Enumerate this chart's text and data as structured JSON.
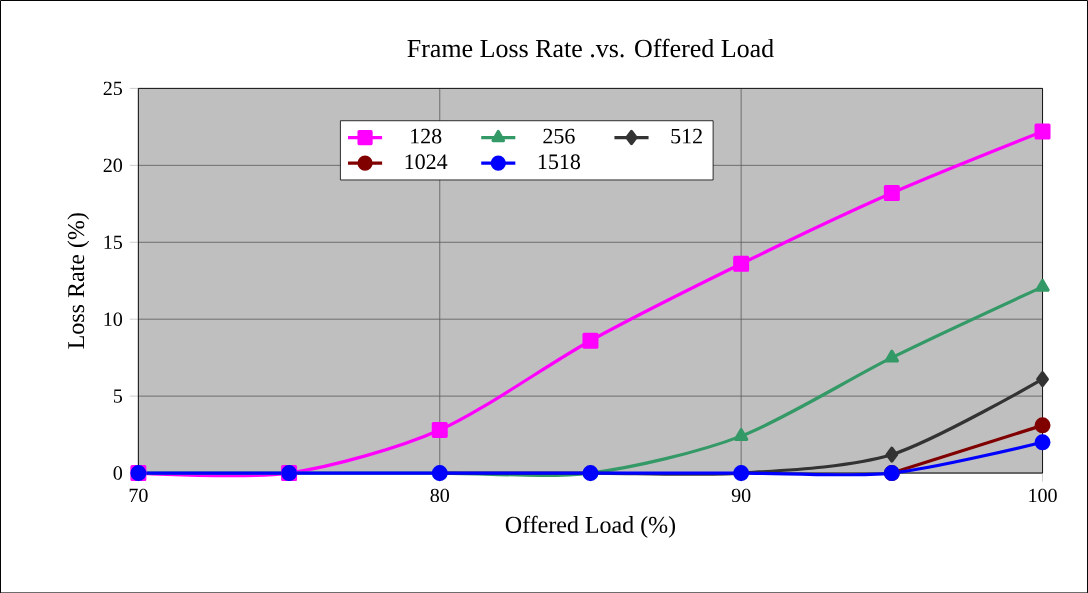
{
  "chart_data": {
    "type": "line",
    "title": "Frame Loss Rate .vs. Offered Load",
    "xlabel": "Offered Load (%)",
    "ylabel": "Loss Rate (%)",
    "x": [
      70,
      75,
      80,
      85,
      90,
      95,
      100
    ],
    "series": [
      {
        "name": "128",
        "color": "#ff00ff",
        "marker": "square",
        "values": [
          0,
          0,
          2.8,
          8.6,
          13.6,
          18.2,
          22.2
        ]
      },
      {
        "name": "256",
        "color": "#339966",
        "marker": "triangle",
        "values": [
          0,
          0,
          0,
          0,
          2.4,
          7.5,
          12.1
        ]
      },
      {
        "name": "512",
        "color": "#333333",
        "marker": "diamond",
        "values": [
          null,
          null,
          0,
          0,
          0,
          1.2,
          6.1
        ]
      },
      {
        "name": "1024",
        "color": "#800000",
        "marker": "circle",
        "values": [
          null,
          null,
          null,
          null,
          null,
          0,
          3.1
        ]
      },
      {
        "name": "1518",
        "color": "#0000ff",
        "marker": "circle",
        "values": [
          0,
          0,
          0,
          0,
          0,
          0,
          2.0
        ]
      }
    ],
    "xlim": [
      70,
      100
    ],
    "xticks": [
      70,
      80,
      90,
      100
    ],
    "ylim": [
      0,
      25
    ],
    "yticks": [
      0,
      5,
      10,
      15,
      20,
      25
    ],
    "grid": true,
    "legend": "top",
    "line_style": "solid"
  }
}
